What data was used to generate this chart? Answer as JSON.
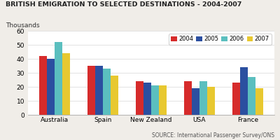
{
  "title": "BRITISH EMIGRATION TO SELECTED DESTINATIONS - 2004-2007",
  "ylabel": "Thousands",
  "categories": [
    "Australia",
    "Spain",
    "New Zealand",
    "USA",
    "France"
  ],
  "years": [
    "2004",
    "2005",
    "2006",
    "2007"
  ],
  "values": {
    "2004": [
      42,
      35,
      24,
      24,
      23
    ],
    "2005": [
      40,
      35,
      23,
      19,
      34
    ],
    "2006": [
      52,
      33,
      21,
      24,
      27
    ],
    "2007": [
      44,
      28,
      21,
      20,
      19
    ]
  },
  "colors": {
    "2004": "#d62b2b",
    "2005": "#2b4fa0",
    "2006": "#5bbfbf",
    "2007": "#e8c830"
  },
  "ylim": [
    0,
    60
  ],
  "yticks": [
    0,
    10,
    20,
    30,
    40,
    50,
    60
  ],
  "source_text": "SOURCE: International Passenger Survey/ONS",
  "page_bg": "#f0ede8",
  "plot_bg": "#ffffff"
}
